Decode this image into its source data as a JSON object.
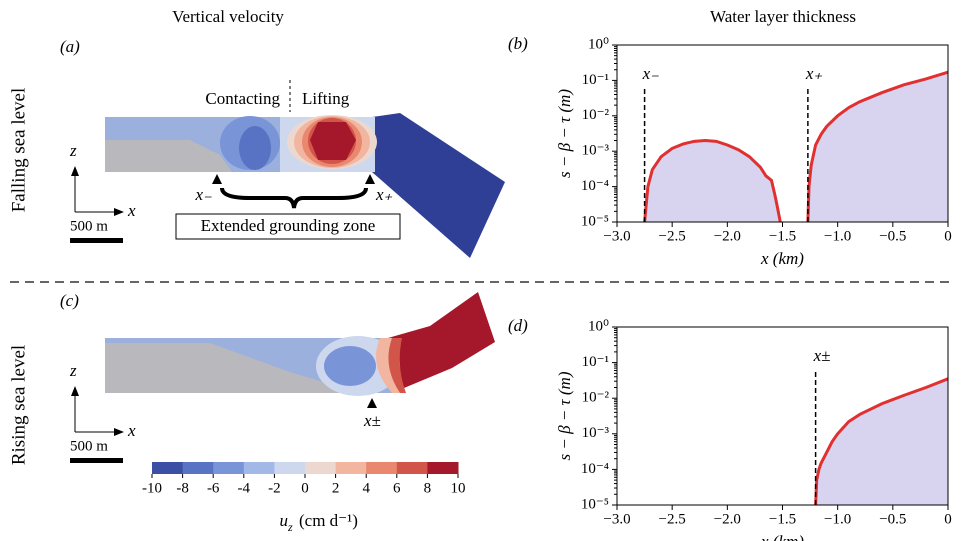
{
  "headers": {
    "left": "Vertical velocity",
    "right": "Water layer thickness"
  },
  "rows": [
    "Falling sea level",
    "Rising sea level"
  ],
  "panel_a": {
    "label": "(a)",
    "contacting": "Contacting",
    "lifting": "Lifting",
    "x_minus": "x₋",
    "x_plus": "x₊",
    "zone": "Extended grounding zone",
    "scale": "500 m",
    "z": "z",
    "x": "x"
  },
  "panel_c": {
    "label": "(c)",
    "x_pm": "x±",
    "scale": "500 m",
    "z": "z",
    "x": "x"
  },
  "colorbar": {
    "symbol": "u",
    "subscript": "z",
    "unit": "(cm d⁻¹)",
    "ticks": [
      -10,
      -8,
      -6,
      -4,
      -2,
      0,
      2,
      4,
      6,
      8,
      10
    ],
    "colors": [
      "#3b4fa5",
      "#5873c3",
      "#7a94d8",
      "#a2b8e6",
      "#cdd8ee",
      "#ecd8cf",
      "#f2b6a0",
      "#e9876f",
      "#d2554a",
      "#a5182b"
    ]
  },
  "chart_data": [
    {
      "type": "line",
      "panel_label": "(b)",
      "xlabel": "x (km)",
      "ylabel": "s − β − τ (m)",
      "log_y": true,
      "fill_color": "#d8d3ef",
      "xlim": [
        -3,
        0
      ],
      "ylim": [
        1e-05,
        1
      ],
      "xticks": [
        {
          "value": -3,
          "label": "−3.0"
        },
        {
          "value": -2.5,
          "label": "−2.5"
        },
        {
          "value": -2,
          "label": "−2.0"
        },
        {
          "value": -1.5,
          "label": "−1.5"
        },
        {
          "value": -1,
          "label": "−1.0"
        },
        {
          "value": -0.5,
          "label": "−0.5"
        },
        0
      ],
      "yticks": [
        {
          "value": 1e-05,
          "label": "10⁻⁵"
        },
        {
          "value": 0.0001,
          "label": "10⁻⁴"
        },
        {
          "value": 0.001,
          "label": "10⁻³"
        },
        {
          "value": 0.01,
          "label": "10⁻²"
        },
        {
          "value": 0.1,
          "label": "10⁻¹"
        },
        {
          "value": 1,
          "label": "10⁰"
        }
      ],
      "vlines": [
        {
          "x": -2.75,
          "label": "x₋"
        },
        {
          "x": -1.27,
          "label": "x₊"
        }
      ],
      "x": [
        -2.75,
        -2.72,
        -2.68,
        -2.6,
        -2.5,
        -2.4,
        -2.3,
        -2.2,
        -2.1,
        -2.0,
        -1.9,
        -1.8,
        -1.7,
        -1.65,
        -1.6,
        -1.57,
        -1.55,
        -1.52,
        -1.4,
        -1.27,
        -1.26,
        -1.24,
        -1.2,
        -1.15,
        -1.1,
        -1.0,
        -0.9,
        -0.8,
        -0.6,
        -0.4,
        -0.2,
        0
      ],
      "series": [
        {
          "color": "#e03030",
          "values": [
            1e-05,
            0.0001,
            0.0003,
            0.0007,
            0.0012,
            0.0016,
            0.0019,
            0.002,
            0.0019,
            0.0015,
            0.0011,
            0.0007,
            0.00035,
            0.0002,
            0.00015,
            6e-05,
            3e-05,
            1e-05,
            null,
            1e-05,
            0.0001,
            0.0004,
            0.0015,
            0.003,
            0.005,
            0.01,
            0.017,
            0.025,
            0.045,
            0.075,
            0.11,
            0.17
          ]
        }
      ]
    },
    {
      "type": "line",
      "panel_label": "(d)",
      "xlabel": "x (km)",
      "ylabel": "s − β − τ (m)",
      "log_y": true,
      "fill_color": "#d8d3ef",
      "xlim": [
        -3,
        0
      ],
      "ylim": [
        1e-05,
        1
      ],
      "xticks": [
        {
          "value": -3,
          "label": "−3.0"
        },
        {
          "value": -2.5,
          "label": "−2.5"
        },
        {
          "value": -2,
          "label": "−2.0"
        },
        {
          "value": -1.5,
          "label": "−1.5"
        },
        {
          "value": -1,
          "label": "−1.0"
        },
        {
          "value": -0.5,
          "label": "−0.5"
        },
        0
      ],
      "yticks": [
        {
          "value": 1e-05,
          "label": "10⁻⁵"
        },
        {
          "value": 0.0001,
          "label": "10⁻⁴"
        },
        {
          "value": 0.001,
          "label": "10⁻³"
        },
        {
          "value": 0.01,
          "label": "10⁻²"
        },
        {
          "value": 0.1,
          "label": "10⁻¹"
        },
        {
          "value": 1,
          "label": "10⁰"
        }
      ],
      "vlines": [
        {
          "x": -1.2,
          "label": "x±"
        }
      ],
      "x": [
        -1.2,
        -1.19,
        -1.17,
        -1.15,
        -1.1,
        -1.05,
        -1.0,
        -0.9,
        -0.8,
        -0.6,
        -0.4,
        -0.2,
        0
      ],
      "series": [
        {
          "color": "#e03030",
          "values": [
            1e-05,
            5e-05,
            0.0001,
            0.00015,
            0.0003,
            0.0006,
            0.001,
            0.0022,
            0.0035,
            0.007,
            0.012,
            0.02,
            0.035
          ]
        }
      ]
    }
  ]
}
